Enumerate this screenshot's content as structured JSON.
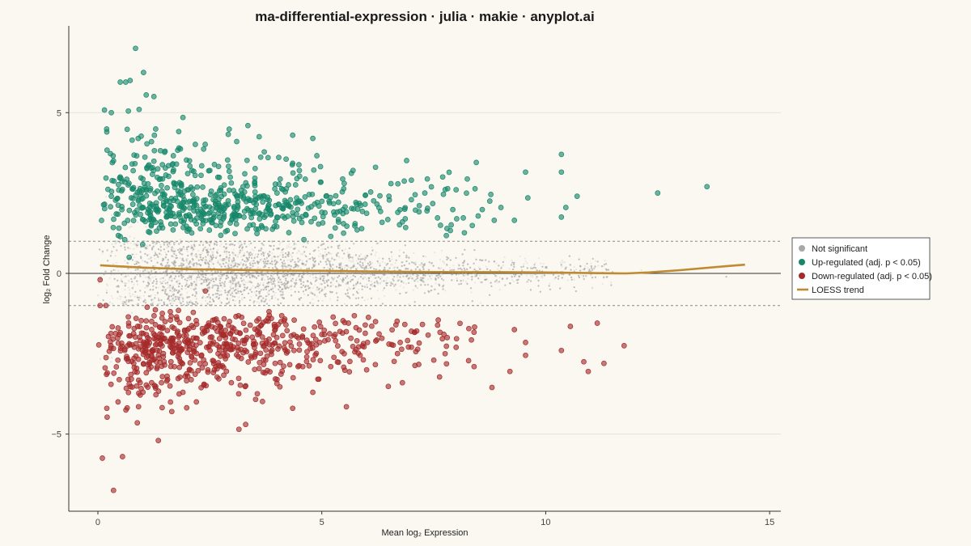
{
  "chart_data": {
    "type": "scatter",
    "title": "ma-differential-expression · julia · makie · anyplot.ai",
    "xlabel": "Mean log₂ Expression",
    "ylabel": "log₂ Fold Change",
    "xlim": [
      -0.65,
      15.25
    ],
    "ylim": [
      -7.4,
      7.7
    ],
    "x_ticks": [
      0,
      5,
      10,
      15
    ],
    "y_ticks": [
      -5,
      0,
      5
    ],
    "x_tick_labels": [
      "0",
      "5",
      "10",
      "15"
    ],
    "y_tick_labels": [
      "−5",
      "0",
      "5"
    ],
    "threshold_lines": [
      1,
      -1
    ],
    "zero_line": 0,
    "grid": "horizontal",
    "legend": {
      "placement": "right",
      "entries": [
        {
          "label": "Not significant",
          "marker": "circle",
          "color": "#A8A8A8"
        },
        {
          "label": "Up-regulated (adj. p < 0.05)",
          "marker": "circle",
          "color": "#17876A"
        },
        {
          "label": "Down-regulated (adj. p < 0.05)",
          "marker": "circle",
          "color": "#A52A2A"
        },
        {
          "label": "LOESS trend",
          "marker": "line",
          "color": "#C08A32"
        }
      ]
    },
    "series": [
      {
        "name": "Not significant",
        "color": "#A8A8A8",
        "note": "dense cloud centred near 0, spread narrowing with expression",
        "approx_count": 9000
      },
      {
        "name": "Up-regulated (adj. p < 0.05)",
        "color": "#17876A",
        "points": [
          [
            0.84,
            7.0
          ],
          [
            1.02,
            6.25
          ],
          [
            0.5,
            5.95
          ],
          [
            0.62,
            5.95
          ],
          [
            0.72,
            6.0
          ],
          [
            1.08,
            5.55
          ],
          [
            1.25,
            5.5
          ],
          [
            0.3,
            5.0
          ],
          [
            0.68,
            5.05
          ],
          [
            0.92,
            5.1
          ],
          [
            1.9,
            4.85
          ],
          [
            3.35,
            4.6
          ],
          [
            4.35,
            4.3
          ],
          [
            4.8,
            4.2
          ],
          [
            0.2,
            4.4
          ],
          [
            10.35,
            3.7
          ],
          [
            10.35,
            3.15
          ],
          [
            9.55,
            3.15
          ],
          [
            8.45,
            3.45
          ],
          [
            12.5,
            2.5
          ],
          [
            13.6,
            2.7
          ],
          [
            10.7,
            2.4
          ],
          [
            10.45,
            2.05
          ],
          [
            10.35,
            1.75
          ],
          [
            9.6,
            2.35
          ],
          [
            9.0,
            2.05
          ],
          [
            8.75,
            2.25
          ],
          [
            8.85,
            1.65
          ],
          [
            9.3,
            1.65
          ],
          [
            7.3,
            2.5
          ],
          [
            0.15,
            2.15
          ],
          [
            0.35,
            3.5
          ],
          [
            0.6,
            1.05
          ],
          [
            1.0,
            0.9
          ],
          [
            1.4,
            1.6
          ],
          [
            5.2,
            1.15
          ],
          [
            4.6,
            1.05
          ],
          [
            5.8,
            2.0
          ],
          [
            6.5,
            2.4
          ],
          [
            7.0,
            2.9
          ],
          [
            3.5,
            2.8
          ],
          [
            2.5,
            3.2
          ],
          [
            2.0,
            2.6
          ],
          [
            1.5,
            3.8
          ],
          [
            0.9,
            4.2
          ],
          [
            0.5,
            3.0
          ],
          [
            0.3,
            2.4
          ],
          [
            0.7,
            0.5
          ],
          [
            1.6,
            2.0
          ],
          [
            2.7,
            2.3
          ],
          [
            3.0,
            1.8
          ],
          [
            4.0,
            2.5
          ],
          [
            4.5,
            3.2
          ],
          [
            5.5,
            2.8
          ],
          [
            6.2,
            3.3
          ],
          [
            7.7,
            3.0
          ],
          [
            8.0,
            2.6
          ],
          [
            6.8,
            1.6
          ],
          [
            5.0,
            1.9
          ],
          [
            3.8,
            3.6
          ]
        ]
      },
      {
        "name": "Down-regulated (adj. p < 0.05)",
        "color": "#A52A2A",
        "points": [
          [
            0.35,
            -6.75
          ],
          [
            0.1,
            -5.75
          ],
          [
            0.55,
            -5.7
          ],
          [
            1.35,
            -5.2
          ],
          [
            3.15,
            -4.85
          ],
          [
            3.3,
            -4.7
          ],
          [
            0.88,
            -4.65
          ],
          [
            0.2,
            -4.2
          ],
          [
            0.45,
            -4.0
          ],
          [
            1.65,
            -4.3
          ],
          [
            4.35,
            -4.2
          ],
          [
            5.55,
            -4.15
          ],
          [
            8.8,
            -3.55
          ],
          [
            9.2,
            -3.05
          ],
          [
            9.55,
            -2.55
          ],
          [
            10.35,
            -2.4
          ],
          [
            10.85,
            -2.75
          ],
          [
            10.95,
            -3.05
          ],
          [
            11.3,
            -2.8
          ],
          [
            11.75,
            -2.25
          ],
          [
            11.15,
            -1.55
          ],
          [
            10.55,
            -1.65
          ],
          [
            9.3,
            -1.75
          ],
          [
            9.55,
            -2.15
          ],
          [
            0.05,
            -1.0
          ],
          [
            0.18,
            -1.0
          ],
          [
            0.45,
            -1.7
          ],
          [
            1.1,
            -1.05
          ],
          [
            1.8,
            -1.15
          ],
          [
            2.4,
            -0.55
          ],
          [
            0.05,
            -0.2
          ],
          [
            0.8,
            -2.8
          ],
          [
            1.2,
            -3.4
          ],
          [
            2.0,
            -2.1
          ],
          [
            2.6,
            -3.0
          ],
          [
            3.0,
            -1.8
          ],
          [
            3.5,
            -2.6
          ],
          [
            4.0,
            -3.3
          ],
          [
            4.5,
            -2.2
          ],
          [
            5.0,
            -1.9
          ],
          [
            5.5,
            -2.5
          ],
          [
            6.0,
            -3.0
          ],
          [
            6.5,
            -2.2
          ],
          [
            7.0,
            -1.8
          ],
          [
            7.5,
            -2.7
          ],
          [
            8.0,
            -2.3
          ],
          [
            8.4,
            -2.9
          ],
          [
            1.5,
            -1.5
          ],
          [
            2.2,
            -4.0
          ],
          [
            3.8,
            -1.4
          ],
          [
            4.8,
            -3.7
          ],
          [
            6.8,
            -3.4
          ],
          [
            0.6,
            -2.4
          ],
          [
            1.9,
            -3.7
          ],
          [
            2.8,
            -2.5
          ],
          [
            5.2,
            -2.9
          ],
          [
            6.2,
            -1.5
          ],
          [
            7.8,
            -2.0
          ],
          [
            3.3,
            -3.5
          ],
          [
            4.2,
            -1.6
          ]
        ]
      }
    ],
    "loess_trend": {
      "name": "LOESS trend",
      "color": "#C08A32",
      "x": [
        0.05,
        1,
        2,
        3,
        4,
        5,
        6,
        7,
        8,
        9,
        10,
        11,
        11.8,
        12.3,
        13,
        14,
        14.45
      ],
      "y": [
        0.25,
        0.18,
        0.13,
        0.11,
        0.09,
        0.08,
        0.06,
        0.05,
        0.04,
        0.04,
        0.03,
        0.01,
        0.0,
        0.03,
        0.1,
        0.22,
        0.27
      ]
    }
  }
}
